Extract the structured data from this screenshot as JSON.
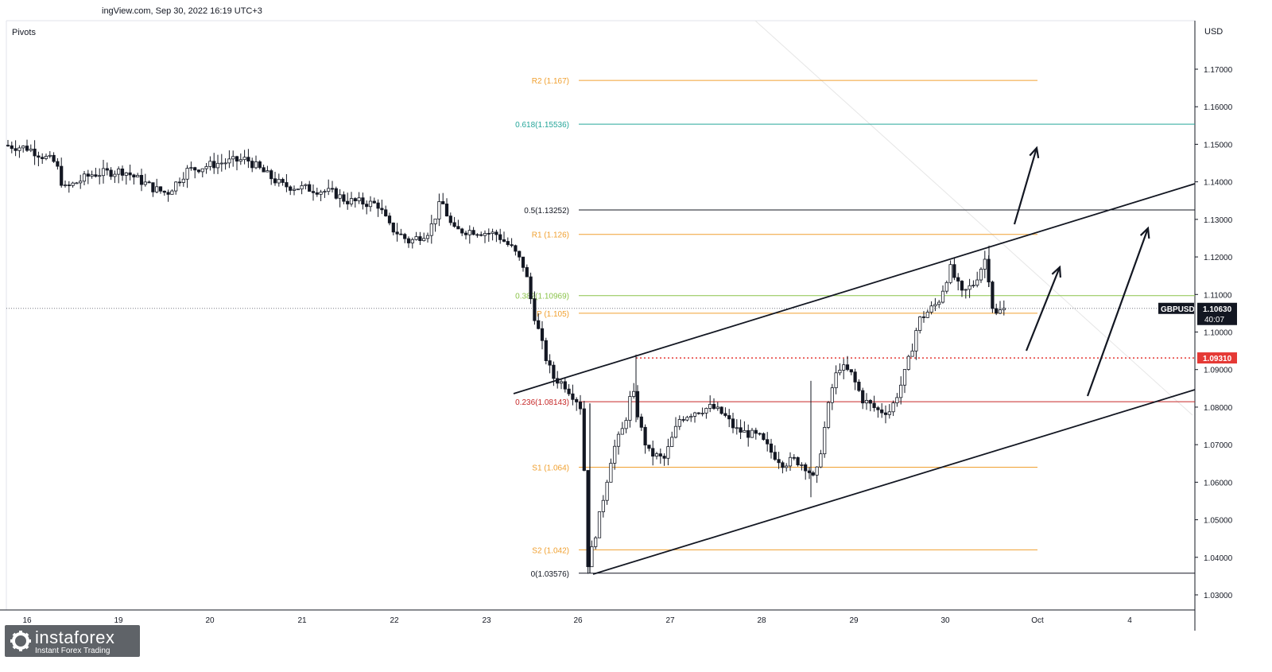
{
  "header": {
    "source": "ingView.com, Sep 30, 2022 16:19 UTC+3",
    "indicator": "Pivots",
    "currency": "USD"
  },
  "brand": {
    "name": "instaforex",
    "tagline": "Instant Forex Trading"
  },
  "chart_data": {
    "type": "candlestick",
    "symbol": "GBPUSD",
    "last_price": "1.10630",
    "countdown": "40:07",
    "marked_price": "1.09310",
    "ylim": [
      1.025,
      1.185
    ],
    "y_ticks": [
      "1.17000",
      "1.16000",
      "1.15000",
      "1.14000",
      "1.13000",
      "1.12000",
      "1.11000",
      "1.10000",
      "1.09000",
      "1.08000",
      "1.07000",
      "1.06000",
      "1.05000",
      "1.04000",
      "1.03000"
    ],
    "x_ticks": [
      "16",
      "19",
      "20",
      "21",
      "22",
      "23",
      "26",
      "27",
      "28",
      "29",
      "30",
      "Oct",
      "4"
    ],
    "levels": [
      {
        "label": "R2 (1.167)",
        "value": 1.167,
        "color": "#f0a030"
      },
      {
        "label": "0.618(1.15536)",
        "value": 1.15536,
        "color": "#26a69a"
      },
      {
        "label": "0.5(1.13252)",
        "value": 1.13252,
        "color": "#131722"
      },
      {
        "label": "R1 (1.126)",
        "value": 1.126,
        "color": "#f0a030"
      },
      {
        "label": "0.382(1.10969)",
        "value": 1.10969,
        "color": "#8bc34a"
      },
      {
        "label": "P (1.105)",
        "value": 1.105,
        "color": "#f0a030"
      },
      {
        "label": "0.236(1.08143)",
        "value": 1.08143,
        "color": "#c62828"
      },
      {
        "label": "S1 (1.064)",
        "value": 1.064,
        "color": "#f0a030"
      },
      {
        "label": "S2 (1.042)",
        "value": 1.042,
        "color": "#f0a030"
      },
      {
        "label": "0(1.03576)",
        "value": 1.03576,
        "color": "#131722"
      }
    ],
    "price_path": [
      [
        0,
        1.15
      ],
      [
        40,
        1.149
      ],
      [
        75,
        1.145
      ],
      [
        85,
        1.138
      ],
      [
        120,
        1.142
      ],
      [
        160,
        1.143
      ],
      [
        200,
        1.138
      ],
      [
        215,
        1.137
      ],
      [
        240,
        1.143
      ],
      [
        280,
        1.145
      ],
      [
        315,
        1.146
      ],
      [
        340,
        1.142
      ],
      [
        360,
        1.139
      ],
      [
        400,
        1.138
      ],
      [
        425,
        1.137
      ],
      [
        440,
        1.135
      ],
      [
        480,
        1.134
      ],
      [
        495,
        1.128
      ],
      [
        520,
        1.124
      ],
      [
        545,
        1.127
      ],
      [
        560,
        1.135
      ],
      [
        575,
        1.127
      ],
      [
        600,
        1.127
      ],
      [
        630,
        1.126
      ],
      [
        650,
        1.122
      ],
      [
        665,
        1.117
      ],
      [
        675,
        1.106
      ],
      [
        690,
        1.094
      ],
      [
        700,
        1.088
      ],
      [
        715,
        1.086
      ],
      [
        730,
        1.082
      ],
      [
        738,
        1.079
      ],
      [
        742,
        1.04
      ],
      [
        745,
        1.038
      ],
      [
        760,
        1.052
      ],
      [
        775,
        1.068
      ],
      [
        790,
        1.075
      ],
      [
        800,
        1.085
      ],
      [
        810,
        1.075
      ],
      [
        820,
        1.068
      ],
      [
        840,
        1.066
      ],
      [
        860,
        1.077
      ],
      [
        880,
        1.079
      ],
      [
        900,
        1.08
      ],
      [
        915,
        1.078
      ],
      [
        930,
        1.074
      ],
      [
        945,
        1.073
      ],
      [
        960,
        1.072
      ],
      [
        975,
        1.068
      ],
      [
        990,
        1.065
      ],
      [
        1005,
        1.066
      ],
      [
        1020,
        1.064
      ],
      [
        1030,
        1.06
      ],
      [
        1040,
        1.072
      ],
      [
        1050,
        1.084
      ],
      [
        1060,
        1.091
      ],
      [
        1075,
        1.089
      ],
      [
        1090,
        1.082
      ],
      [
        1110,
        1.079
      ],
      [
        1125,
        1.079
      ],
      [
        1140,
        1.087
      ],
      [
        1150,
        1.094
      ],
      [
        1160,
        1.103
      ],
      [
        1175,
        1.106
      ],
      [
        1185,
        1.108
      ],
      [
        1200,
        1.117
      ],
      [
        1215,
        1.11
      ],
      [
        1230,
        1.113
      ],
      [
        1245,
        1.12
      ],
      [
        1255,
        1.104
      ],
      [
        1265,
        1.106
      ]
    ]
  }
}
